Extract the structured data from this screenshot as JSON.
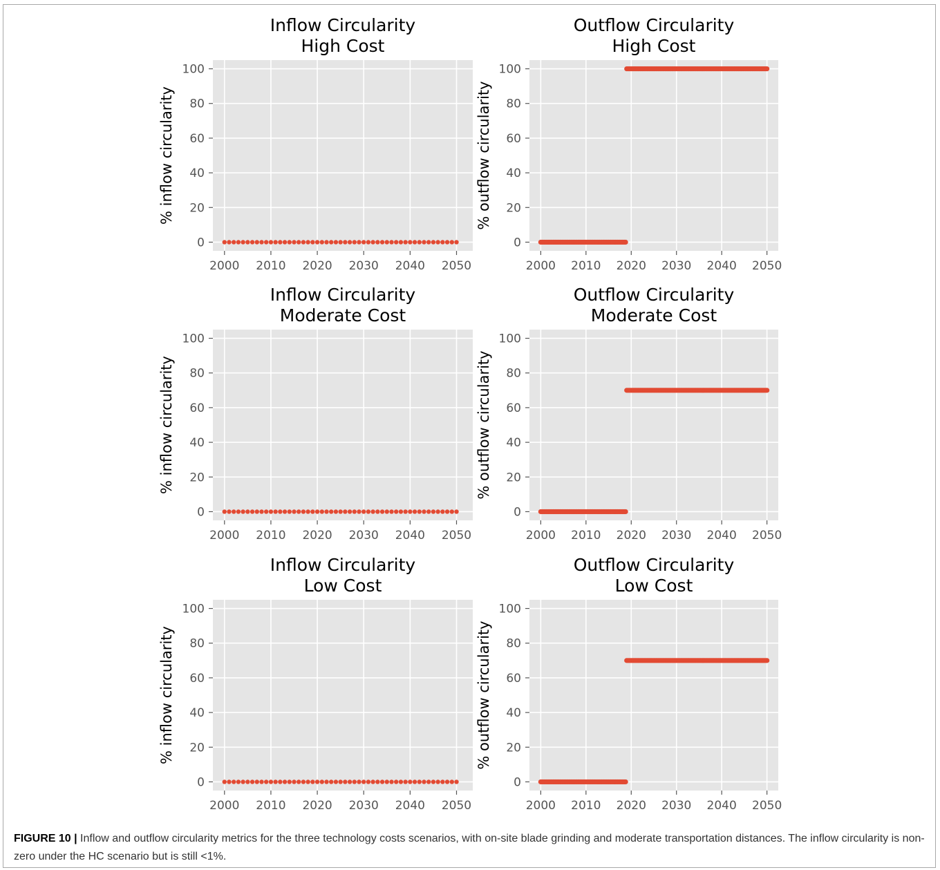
{
  "caption": {
    "label": "FIGURE 10 |",
    "text": " Inflow and outflow circularity metrics for the three technology costs scenarios, with on-site blade grinding and moderate transportation distances. The inflow circularity is non-zero under the HC scenario but is still <1%."
  },
  "colors": {
    "panel_bg": "#e5e5e5",
    "grid": "#ffffff",
    "marker": "#e24a33",
    "tick_text": "#555555",
    "title_text": "#000000"
  },
  "chart_data": [
    {
      "type": "scatter",
      "title": "Inflow Circularity\nHigh Cost",
      "xlabel": "",
      "ylabel": "% inflow circularity",
      "xlim": [
        1997.5,
        2053.5
      ],
      "ylim": [
        -5,
        105
      ],
      "xticks": [
        2000,
        2010,
        2020,
        2030,
        2040,
        2050
      ],
      "yticks": [
        0,
        20,
        40,
        60,
        80,
        100
      ],
      "grid": true,
      "series": [
        {
          "x_start": 2000,
          "x_end": 2050,
          "x_step": 1,
          "segments": [
            {
              "from": 2000,
              "to": 2050,
              "y": 0
            }
          ]
        }
      ]
    },
    {
      "type": "scatter",
      "title": "Outflow Circularity\nHigh Cost",
      "xlabel": "",
      "ylabel": "% outflow circularity",
      "xlim": [
        1997.5,
        2052.5
      ],
      "ylim": [
        -5,
        105
      ],
      "xticks": [
        2000,
        2010,
        2020,
        2030,
        2040,
        2050
      ],
      "yticks": [
        0,
        20,
        40,
        60,
        80,
        100
      ],
      "grid": true,
      "series": [
        {
          "x_start": 2000,
          "x_end": 2050,
          "x_step": 0.25,
          "segments": [
            {
              "from": 2000,
              "to": 2019,
              "y": 0
            },
            {
              "from": 2019,
              "to": 2050,
              "y": 100
            }
          ]
        }
      ]
    },
    {
      "type": "scatter",
      "title": "Inflow Circularity\nModerate Cost",
      "xlabel": "",
      "ylabel": "% inflow circularity",
      "xlim": [
        1997.5,
        2053.5
      ],
      "ylim": [
        -5,
        105
      ],
      "xticks": [
        2000,
        2010,
        2020,
        2030,
        2040,
        2050
      ],
      "yticks": [
        0,
        20,
        40,
        60,
        80,
        100
      ],
      "grid": true,
      "series": [
        {
          "x_start": 2000,
          "x_end": 2050,
          "x_step": 1,
          "segments": [
            {
              "from": 2000,
              "to": 2050,
              "y": 0
            }
          ]
        }
      ]
    },
    {
      "type": "scatter",
      "title": "Outflow Circularity\nModerate Cost",
      "xlabel": "",
      "ylabel": "% outflow circularity",
      "xlim": [
        1997.5,
        2052.5
      ],
      "ylim": [
        -5,
        105
      ],
      "xticks": [
        2000,
        2010,
        2020,
        2030,
        2040,
        2050
      ],
      "yticks": [
        0,
        20,
        40,
        60,
        80,
        100
      ],
      "grid": true,
      "series": [
        {
          "x_start": 2000,
          "x_end": 2050,
          "x_step": 0.25,
          "segments": [
            {
              "from": 2000,
              "to": 2019,
              "y": 0
            },
            {
              "from": 2019,
              "to": 2050,
              "y": 70
            }
          ]
        }
      ]
    },
    {
      "type": "scatter",
      "title": "Inflow Circularity\nLow Cost",
      "xlabel": "",
      "ylabel": "% inflow circularity",
      "xlim": [
        1997.5,
        2053.5
      ],
      "ylim": [
        -5,
        105
      ],
      "xticks": [
        2000,
        2010,
        2020,
        2030,
        2040,
        2050
      ],
      "yticks": [
        0,
        20,
        40,
        60,
        80,
        100
      ],
      "grid": true,
      "series": [
        {
          "x_start": 2000,
          "x_end": 2050,
          "x_step": 1,
          "segments": [
            {
              "from": 2000,
              "to": 2050,
              "y": 0
            }
          ]
        }
      ]
    },
    {
      "type": "scatter",
      "title": "Outflow Circularity\nLow Cost",
      "xlabel": "",
      "ylabel": "% outflow circularity",
      "xlim": [
        1997.5,
        2052.5
      ],
      "ylim": [
        -5,
        105
      ],
      "xticks": [
        2000,
        2010,
        2020,
        2030,
        2040,
        2050
      ],
      "yticks": [
        0,
        20,
        40,
        60,
        80,
        100
      ],
      "grid": true,
      "series": [
        {
          "x_start": 2000,
          "x_end": 2050,
          "x_step": 0.25,
          "segments": [
            {
              "from": 2000,
              "to": 2019,
              "y": 0
            },
            {
              "from": 2019,
              "to": 2050,
              "y": 70
            }
          ]
        }
      ]
    }
  ]
}
